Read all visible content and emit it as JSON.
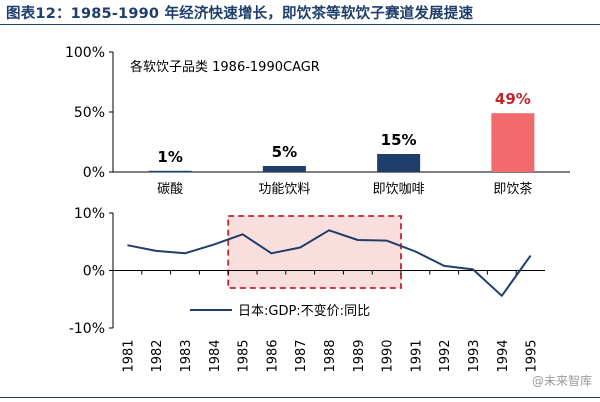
{
  "header": {
    "title": "图表12：1985-1990 年经济快速增长，即饮茶等软饮子赛道发展提速"
  },
  "colors": {
    "title": "#1f3e6b",
    "bar": "#1f3e6b",
    "bar_highlight": "#f06a6e",
    "label_highlight": "#c0262d",
    "line": "#1f3e6b",
    "highlight_box": "#c0262d",
    "highlight_fill": "#f9dede"
  },
  "watermark": "@未来智库",
  "chart_data": [
    {
      "type": "bar",
      "annotation": "各软饮子品类 1986-1990CAGR",
      "categories": [
        "碳酸",
        "功能饮料",
        "即饮咖啡",
        "即饮茶"
      ],
      "values": [
        1,
        5,
        15,
        49
      ],
      "data_labels": [
        "1%",
        "5%",
        "15%",
        "49%"
      ],
      "highlight_index": 3,
      "ylim": [
        0,
        100
      ],
      "yticks": [
        0,
        50,
        100
      ],
      "ytick_labels": [
        "0%",
        "50%",
        "100%"
      ],
      "grid": false
    },
    {
      "type": "line",
      "x": [
        "1981",
        "1982",
        "1983",
        "1984",
        "1985",
        "1986",
        "1987",
        "1988",
        "1989",
        "1990",
        "1991",
        "1992",
        "1993",
        "1994",
        "1995"
      ],
      "series": [
        {
          "name": "日本:GDP:不变价:同比",
          "values": [
            4.4,
            3.4,
            3.0,
            4.5,
            6.3,
            3.0,
            4.0,
            7.0,
            5.3,
            5.2,
            3.3,
            0.8,
            0.2,
            -4.4,
            2.6
          ]
        }
      ],
      "ylim": [
        -10,
        10
      ],
      "yticks": [
        -10,
        0,
        10
      ],
      "ytick_labels": [
        "-10%",
        "0%",
        "10%"
      ],
      "highlight_range": [
        "1985",
        "1990"
      ],
      "legend_position": "bottom-center",
      "grid": false
    }
  ]
}
